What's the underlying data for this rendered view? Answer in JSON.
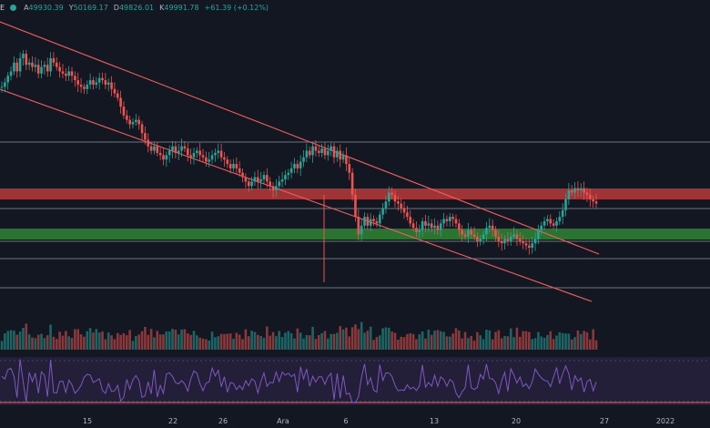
{
  "header": {
    "symbol_tail": "E",
    "open_label": "A",
    "open": "49930.39",
    "high_label": "Y",
    "high": "50169.17",
    "low_label": "D",
    "low": "49826.01",
    "close_label": "K",
    "close": "49991.78",
    "change": "+61.39 (+0.12%)"
  },
  "colors": {
    "background": "#131722",
    "up": "#26a69a",
    "down": "#ef5350",
    "resistance_zone": "#b83a3a",
    "support_zone": "#2e7d32",
    "trend_lines": "#f06060",
    "rsi_line": "#7e57c2",
    "rsi_band": "#2a2340"
  },
  "chart_data": {
    "type": "candlestick",
    "x_tick_labels": [
      "15",
      "22",
      "26",
      "Ara",
      "6",
      "13",
      "20",
      "27",
      "2022"
    ],
    "y_axis_labels": "not visible (cropped)",
    "volume_panel": true,
    "rsi_panel": true,
    "grid": false,
    "annotations": [
      "descending channel upper line",
      "descending channel lower line",
      "red resistance zone",
      "green support zone",
      "horizontal level lines"
    ],
    "price_series_normalized": [
      0.73,
      0.75,
      0.78,
      0.8,
      0.84,
      0.8,
      0.86,
      0.88,
      0.83,
      0.84,
      0.82,
      0.83,
      0.79,
      0.82,
      0.83,
      0.8,
      0.86,
      0.84,
      0.82,
      0.8,
      0.79,
      0.78,
      0.8,
      0.78,
      0.76,
      0.74,
      0.73,
      0.72,
      0.74,
      0.76,
      0.74,
      0.75,
      0.77,
      0.76,
      0.74,
      0.75,
      0.72,
      0.7,
      0.68,
      0.64,
      0.6,
      0.58,
      0.56,
      0.57,
      0.58,
      0.56,
      0.52,
      0.49,
      0.46,
      0.44,
      0.46,
      0.43,
      0.42,
      0.4,
      0.42,
      0.44,
      0.46,
      0.43,
      0.44,
      0.46,
      0.45,
      0.42,
      0.41,
      0.43,
      0.44,
      0.42,
      0.41,
      0.39,
      0.4,
      0.42,
      0.43,
      0.44,
      0.41,
      0.4,
      0.38,
      0.36,
      0.38,
      0.36,
      0.34,
      0.32,
      0.3,
      0.28,
      0.3,
      0.32,
      0.3,
      0.31,
      0.33,
      0.3,
      0.28,
      0.26,
      0.28,
      0.3,
      0.31,
      0.33,
      0.34,
      0.36,
      0.38,
      0.36,
      0.39,
      0.41,
      0.44,
      0.42,
      0.46,
      0.44,
      0.43,
      0.45,
      0.42,
      0.44,
      0.46,
      0.41,
      0.44,
      0.4,
      0.42,
      0.38,
      0.34,
      0.24,
      0.14,
      0.06,
      0.1,
      0.14,
      0.1,
      0.13,
      0.12,
      0.11,
      0.15,
      0.18,
      0.21,
      0.25,
      0.24,
      0.21,
      0.2,
      0.18,
      0.16,
      0.14,
      0.11,
      0.09,
      0.07,
      0.08,
      0.12,
      0.1,
      0.11,
      0.09,
      0.1,
      0.08,
      0.11,
      0.13,
      0.12,
      0.14,
      0.13,
      0.11,
      0.08,
      0.06,
      0.05,
      0.08,
      0.06,
      0.05,
      0.03,
      0.04,
      0.06,
      0.09,
      0.1,
      0.08,
      0.05,
      0.03,
      0.02,
      0.04,
      0.03,
      0.05,
      0.06,
      0.04,
      0.03,
      0.02,
      0.01,
      0.0,
      0.02,
      0.04,
      0.08,
      0.1,
      0.12,
      0.13,
      0.11,
      0.1,
      0.12,
      0.14,
      0.17,
      0.22,
      0.26,
      0.25,
      0.27,
      0.26,
      0.27,
      0.25,
      0.24,
      0.22,
      0.21,
      0.2
    ]
  }
}
